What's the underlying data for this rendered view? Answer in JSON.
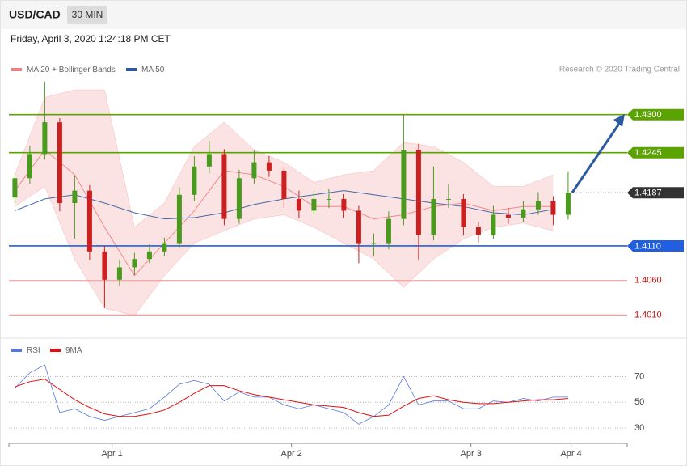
{
  "header": {
    "symbol": "USD/CAD",
    "interval": "30 MIN",
    "timestamp": "Friday, April 3, 2020 1:24:18 PM CET"
  },
  "chart_data": [
    {
      "type": "candlestick",
      "source": "Research © 2020 Trading Central",
      "up_color": "#4a9a1e",
      "down_color": "#cc2020",
      "x": [
        11,
        13,
        15,
        17,
        19,
        21,
        23,
        25,
        27,
        29,
        31,
        33,
        35,
        37,
        39,
        41,
        43,
        45,
        47,
        49,
        51,
        53,
        55,
        57,
        59,
        61,
        63,
        65,
        67,
        69,
        71,
        73,
        75,
        77,
        79,
        81,
        83,
        85
      ],
      "open": [
        1.418,
        1.4208,
        1.4243,
        1.4289,
        1.4172,
        1.419,
        1.4102,
        1.4061,
        1.4079,
        1.4091,
        1.4102,
        1.4114,
        1.4184,
        1.4225,
        1.4243,
        1.4149,
        1.4208,
        1.4231,
        1.4219,
        1.4178,
        1.4161,
        1.4178,
        1.4178,
        1.4161,
        1.4114,
        1.4114,
        1.4149,
        1.4249,
        1.4126,
        1.4178,
        1.4178,
        1.4137,
        1.4126,
        1.4155,
        1.4151,
        1.4163,
        1.4175,
        1.4155
      ],
      "high": [
        1.4215,
        1.4255,
        1.4348,
        1.4295,
        1.4212,
        1.4198,
        1.411,
        1.409,
        1.41,
        1.4112,
        1.4122,
        1.4195,
        1.424,
        1.4262,
        1.425,
        1.422,
        1.4248,
        1.424,
        1.4225,
        1.419,
        1.419,
        1.4192,
        1.4185,
        1.4168,
        1.4128,
        1.416,
        1.43,
        1.4258,
        1.4225,
        1.42,
        1.4185,
        1.4145,
        1.4168,
        1.4165,
        1.4175,
        1.4188,
        1.4182,
        1.4218
      ],
      "low": [
        1.4172,
        1.42,
        1.4235,
        1.416,
        1.412,
        1.409,
        1.402,
        1.4052,
        1.4068,
        1.4085,
        1.4095,
        1.4108,
        1.4175,
        1.4215,
        1.414,
        1.4142,
        1.42,
        1.421,
        1.4165,
        1.415,
        1.4155,
        1.4165,
        1.415,
        1.4085,
        1.4095,
        1.4105,
        1.414,
        1.409,
        1.4118,
        1.4165,
        1.4125,
        1.4115,
        1.412,
        1.4142,
        1.4145,
        1.4155,
        1.414,
        1.4148
      ],
      "close": [
        1.4208,
        1.4243,
        1.4289,
        1.4172,
        1.419,
        1.4102,
        1.4061,
        1.4079,
        1.4091,
        1.4102,
        1.4114,
        1.4184,
        1.4225,
        1.4243,
        1.4149,
        1.4208,
        1.4231,
        1.4219,
        1.4178,
        1.4161,
        1.4178,
        1.4178,
        1.4161,
        1.4114,
        1.4114,
        1.4149,
        1.4249,
        1.4126,
        1.4178,
        1.4178,
        1.4137,
        1.4126,
        1.4155,
        1.4151,
        1.4163,
        1.4175,
        1.4155,
        1.4187
      ],
      "indicator_x": [
        11,
        15,
        19,
        23,
        27,
        31,
        35,
        39,
        43,
        47,
        51,
        55,
        59,
        63,
        67,
        71,
        75,
        79,
        83
      ],
      "bollinger": {
        "name": "MA 20 + Bollinger Bands",
        "color": "#f08080",
        "upper": [
          1.4213,
          1.4325,
          1.4336,
          1.4336,
          1.4137,
          1.4172,
          1.4254,
          1.4289,
          1.4249,
          1.4231,
          1.4202,
          1.4213,
          1.4219,
          1.426,
          1.4254,
          1.4231,
          1.4196,
          1.4196,
          1.4213
        ],
        "middle": [
          1.419,
          1.4249,
          1.4213,
          1.4137,
          1.4067,
          1.4114,
          1.4161,
          1.4219,
          1.4213,
          1.4196,
          1.4167,
          1.4167,
          1.4149,
          1.4155,
          1.4167,
          1.4172,
          1.4161,
          1.4167,
          1.4167
        ],
        "lower": [
          1.4167,
          1.4196,
          1.4091,
          1.402,
          1.4009,
          1.4067,
          1.4114,
          1.4132,
          1.4149,
          1.4155,
          1.4137,
          1.4114,
          1.4091,
          1.405,
          1.4091,
          1.412,
          1.4137,
          1.4143,
          1.4132
        ]
      },
      "ma50": {
        "name": "MA 50",
        "color": "#2c5aa0",
        "values": [
          1.4161,
          1.4178,
          1.4184,
          1.4172,
          1.4158,
          1.4149,
          1.4151,
          1.4158,
          1.417,
          1.4178,
          1.4184,
          1.419,
          1.4184,
          1.4178,
          1.4172,
          1.4167,
          1.4158,
          1.4155,
          1.4163
        ]
      },
      "levels": [
        {
          "value": 1.43,
          "label": "1.4300",
          "color": "#5ba300",
          "style": "tag"
        },
        {
          "value": 1.4245,
          "label": "1.4245",
          "color": "#5ba300",
          "style": "tag"
        },
        {
          "value": 1.4187,
          "label": "1.4187",
          "color": "#333333",
          "style": "current"
        },
        {
          "value": 1.411,
          "label": "1.4110",
          "color": "#1f5fe0",
          "style": "tag"
        },
        {
          "value": 1.406,
          "label": "1.4060",
          "color": "#f4a0a0",
          "style": "text"
        },
        {
          "value": 1.401,
          "label": "1.4010",
          "color": "#f4a0a0",
          "style": "text"
        }
      ],
      "xlim": [
        10.2,
        92.9
      ],
      "ylim": [
        1.398,
        1.4384
      ]
    },
    {
      "type": "line",
      "x": [
        11,
        13,
        15,
        17,
        19,
        21,
        23,
        25,
        27,
        29,
        31,
        33,
        35,
        37,
        39,
        41,
        43,
        45,
        47,
        49,
        51,
        53,
        55,
        57,
        59,
        61,
        63,
        65,
        67,
        69,
        71,
        73,
        75,
        77,
        79,
        81,
        83,
        85
      ],
      "series": [
        {
          "name": "RSI",
          "color": "#5577dd",
          "values": [
            61,
            73,
            79,
            42,
            45,
            39,
            36,
            39,
            42,
            45,
            54,
            64,
            67,
            64,
            51,
            58,
            54,
            54,
            48,
            45,
            48,
            45,
            42,
            33,
            39,
            48,
            70,
            48,
            51,
            51,
            45,
            45,
            51,
            50,
            53,
            51,
            54,
            54
          ]
        },
        {
          "name": "9MA",
          "color": "#e01010",
          "values": [
            62,
            66,
            68,
            60,
            52,
            46,
            41,
            39,
            39,
            41,
            44,
            50,
            57,
            63,
            63,
            59,
            56,
            54,
            52,
            50,
            48,
            47,
            46,
            42,
            39,
            40,
            47,
            53,
            55,
            52,
            50,
            49,
            49,
            50,
            51,
            52,
            52,
            53
          ]
        }
      ],
      "xlim": [
        10.2,
        92.9
      ],
      "ylim": [
        20,
        86
      ],
      "yticks": [
        70,
        50,
        30
      ],
      "grid": true,
      "xticks": [
        {
          "value": 24,
          "label": "Apr 1"
        },
        {
          "value": 48,
          "label": "Apr 2"
        },
        {
          "value": 72,
          "label": "Apr 3"
        },
        {
          "value": 85.4,
          "label": "Apr 4"
        }
      ]
    }
  ]
}
